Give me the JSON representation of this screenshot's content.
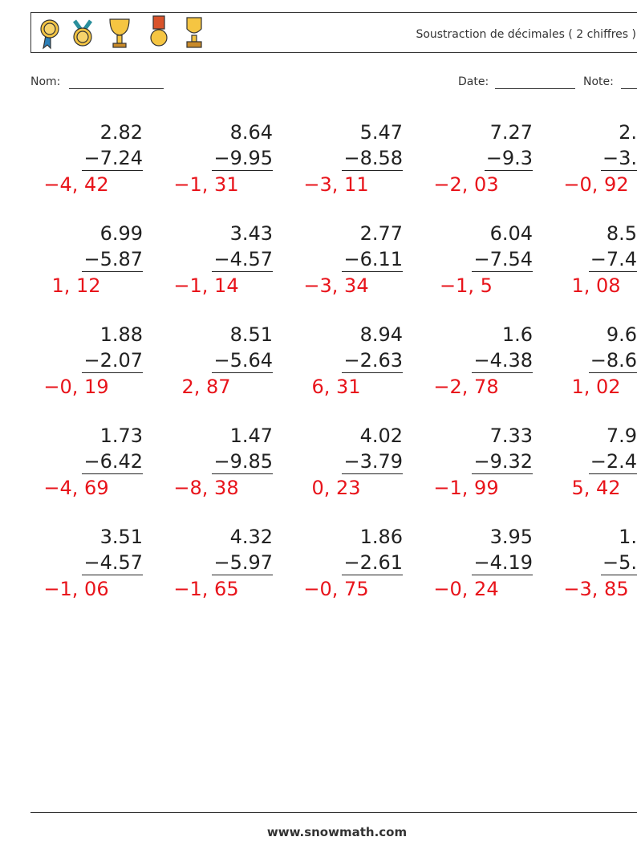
{
  "header": {
    "title": "Soustraction de décimales ( 2 chiffres )"
  },
  "fields": {
    "name_label": "Nom:",
    "date_label": "Date:",
    "note_label": "Note:"
  },
  "problems": [
    [
      {
        "top": "2.82",
        "bottom": "−7.24",
        "answer": "−4, 42"
      },
      {
        "top": "8.64",
        "bottom": "−9.95",
        "answer": "−1, 31"
      },
      {
        "top": "5.47",
        "bottom": "−8.58",
        "answer": "−3, 11"
      },
      {
        "top": "7.27",
        "bottom": "−9.3",
        "answer": "−2, 03"
      },
      {
        "top": "2.",
        "bottom": "−3.",
        "answer": "−0, 92"
      }
    ],
    [
      {
        "top": "6.99",
        "bottom": "−5.87",
        "answer": "1, 12"
      },
      {
        "top": "3.43",
        "bottom": "−4.57",
        "answer": "−1, 14"
      },
      {
        "top": "2.77",
        "bottom": "−6.11",
        "answer": "−3, 34"
      },
      {
        "top": "6.04",
        "bottom": "−7.54",
        "answer": "−1, 5"
      },
      {
        "top": "8.5",
        "bottom": "−7.4",
        "answer": "1, 08"
      }
    ],
    [
      {
        "top": "1.88",
        "bottom": "−2.07",
        "answer": "−0, 19"
      },
      {
        "top": "8.51",
        "bottom": "−5.64",
        "answer": "2, 87"
      },
      {
        "top": "8.94",
        "bottom": "−2.63",
        "answer": "6, 31"
      },
      {
        "top": "1.6",
        "bottom": "−4.38",
        "answer": "−2, 78"
      },
      {
        "top": "9.6",
        "bottom": "−8.6",
        "answer": "1, 02"
      }
    ],
    [
      {
        "top": "1.73",
        "bottom": "−6.42",
        "answer": "−4, 69"
      },
      {
        "top": "1.47",
        "bottom": "−9.85",
        "answer": "−8, 38"
      },
      {
        "top": "4.02",
        "bottom": "−3.79",
        "answer": "0, 23"
      },
      {
        "top": "7.33",
        "bottom": "−9.32",
        "answer": "−1, 99"
      },
      {
        "top": "7.9",
        "bottom": "−2.4",
        "answer": "5, 42"
      }
    ],
    [
      {
        "top": "3.51",
        "bottom": "−4.57",
        "answer": "−1, 06"
      },
      {
        "top": "4.32",
        "bottom": "−5.97",
        "answer": "−1, 65"
      },
      {
        "top": "1.86",
        "bottom": "−2.61",
        "answer": "−0, 75"
      },
      {
        "top": "3.95",
        "bottom": "−4.19",
        "answer": "−0, 24"
      },
      {
        "top": "1.",
        "bottom": "−5.",
        "answer": "−3, 85"
      }
    ]
  ],
  "footer": {
    "site": "www.snowmath.com"
  }
}
